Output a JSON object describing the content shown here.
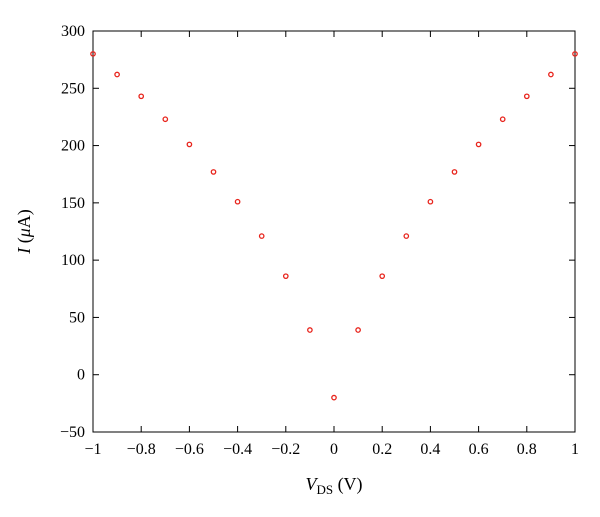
{
  "chart_data": {
    "type": "scatter",
    "x_label": {
      "var": "V",
      "sub": "DS",
      "unit": " (V)"
    },
    "y_label": {
      "var": "I",
      "unit_open": " (",
      "unit_mu": "μ",
      "unit_rest": "A)"
    },
    "xlim": [
      -1,
      1
    ],
    "ylim": [
      -50,
      300
    ],
    "x_ticks": [
      -1,
      -0.8,
      -0.6,
      -0.4,
      -0.2,
      0,
      0.2,
      0.4,
      0.6,
      0.8,
      1
    ],
    "x_tick_labels": [
      "−1",
      "−0.8",
      "−0.6",
      "−0.4",
      "−0.2",
      "0",
      "0.2",
      "0.4",
      "0.6",
      "0.8",
      "1"
    ],
    "y_ticks": [
      -50,
      0,
      50,
      100,
      150,
      200,
      250,
      300
    ],
    "y_tick_labels": [
      "−50",
      "0",
      "50",
      "100",
      "150",
      "200",
      "250",
      "300"
    ],
    "marker_color": "#e8241c",
    "grid": false,
    "legend": "none",
    "x": [
      -1.0,
      -0.9,
      -0.8,
      -0.7,
      -0.6,
      -0.5,
      -0.4,
      -0.3,
      -0.2,
      -0.1,
      0.0,
      0.1,
      0.2,
      0.3,
      0.4,
      0.5,
      0.6,
      0.7,
      0.8,
      0.9,
      1.0
    ],
    "y": [
      280,
      262,
      243,
      223,
      201,
      177,
      151,
      121,
      86,
      39,
      -20,
      39,
      86,
      121,
      151,
      177,
      201,
      223,
      243,
      262,
      280
    ]
  }
}
